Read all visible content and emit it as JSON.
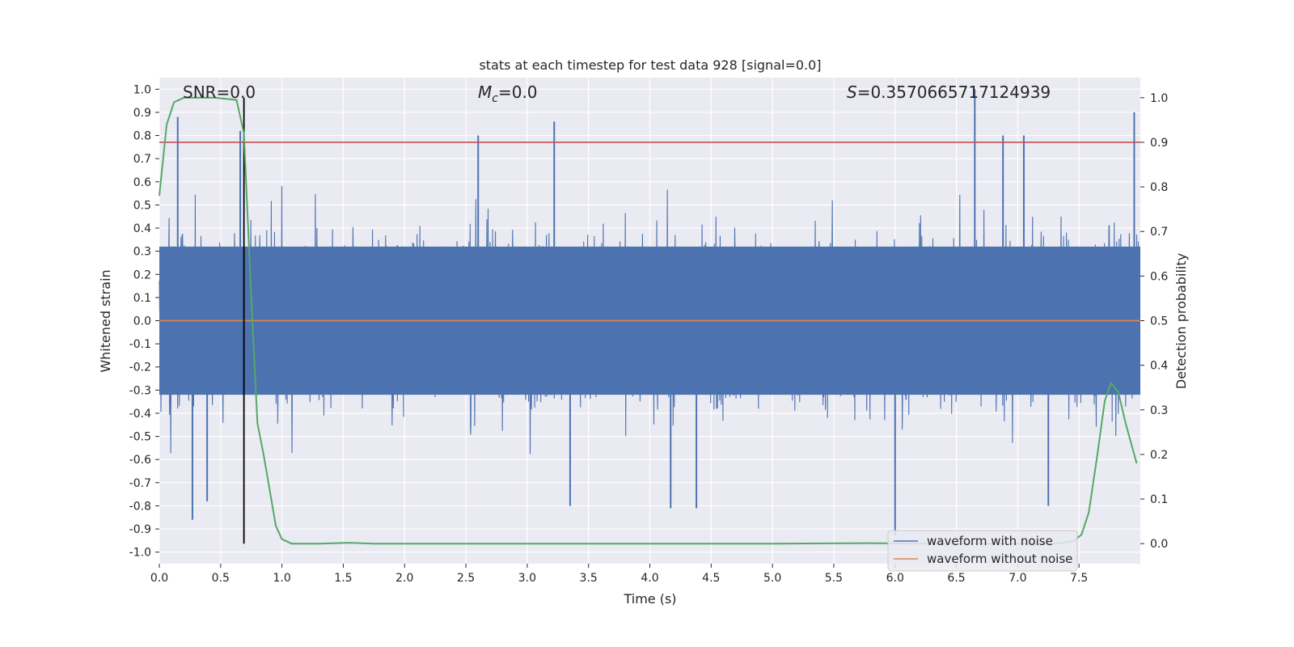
{
  "chart_data": {
    "type": "line",
    "title": "stats at each timestep for test data 928 [signal=0.0]",
    "xlabel": "Time (s)",
    "ylabel_left": "Whitened strain",
    "ylabel_right": "Detection probability",
    "xlim": [
      0.0,
      8.0
    ],
    "ylim_left": [
      -1.05,
      1.05
    ],
    "ylim_right": [
      -0.045,
      1.045
    ],
    "x_ticks": [
      "0.0",
      "0.5",
      "1.0",
      "1.5",
      "2.0",
      "2.5",
      "3.0",
      "3.5",
      "4.0",
      "4.5",
      "5.0",
      "5.5",
      "6.0",
      "6.5",
      "7.0",
      "7.5"
    ],
    "y_left_ticks": [
      "1.0",
      "0.9",
      "0.8",
      "0.7",
      "0.6",
      "0.5",
      "0.4",
      "0.3",
      "0.2",
      "0.1",
      "0.0",
      "-0.1",
      "-0.2",
      "-0.3",
      "-0.4",
      "-0.5",
      "-0.6",
      "-0.7",
      "-0.8",
      "-0.9",
      "-1.0"
    ],
    "y_right_ticks": [
      "1.0",
      "0.9",
      "0.8",
      "0.7",
      "0.6",
      "0.5",
      "0.4",
      "0.3",
      "0.2",
      "0.1",
      "0.0"
    ],
    "annotations": {
      "snr_label": "SNR=0.0",
      "mc_symbol": "M",
      "mc_sub": "c",
      "mc_value": "=0.0",
      "s_symbol": "S",
      "s_value": "=0.3570665717124939"
    },
    "threshold_right": 0.9,
    "vertical_marker_x": 0.69,
    "grid": true,
    "legend_position": "lower-right",
    "series": [
      {
        "name": "waveform with noise",
        "color": "#4c72b0",
        "description_values": "dense noise, typical range ~[-0.55, 0.55], peaks to 1.0",
        "spikes": [
          [
            0.15,
            0.88
          ],
          [
            0.27,
            -0.86
          ],
          [
            0.39,
            -0.78
          ],
          [
            0.66,
            0.82
          ],
          [
            2.6,
            0.8
          ],
          [
            3.22,
            0.86
          ],
          [
            3.35,
            -0.8
          ],
          [
            4.17,
            -0.81
          ],
          [
            4.38,
            -0.81
          ],
          [
            6.0,
            -0.93
          ],
          [
            6.65,
            1.0
          ],
          [
            6.88,
            0.8
          ],
          [
            7.05,
            0.8
          ],
          [
            7.25,
            -0.8
          ],
          [
            7.95,
            0.9
          ]
        ]
      },
      {
        "name": "waveform without noise",
        "color": "#dd8452",
        "values_constant": 0.0
      },
      {
        "name": "",
        "color": "#55a868",
        "axis": "right",
        "x": [
          0.0,
          0.06,
          0.12,
          0.2,
          0.3,
          0.45,
          0.63,
          0.69,
          0.75,
          0.8,
          0.85,
          0.9,
          0.95,
          1.0,
          1.08,
          1.3,
          1.55,
          1.75,
          2.0,
          3.0,
          4.0,
          5.0,
          5.8,
          6.2,
          6.6,
          7.0,
          7.3,
          7.45,
          7.52,
          7.58,
          7.65,
          7.71,
          7.76,
          7.82,
          7.88,
          7.94,
          7.97
        ],
        "y": [
          0.78,
          0.94,
          0.99,
          1.0,
          1.0,
          1.0,
          0.995,
          0.92,
          0.55,
          0.27,
          0.2,
          0.12,
          0.04,
          0.01,
          0.0,
          0.0,
          0.002,
          0.0,
          0.0,
          0.0,
          0.0,
          0.0,
          0.001,
          0.0,
          0.0,
          0.0,
          0.0,
          0.005,
          0.02,
          0.07,
          0.2,
          0.32,
          0.36,
          0.34,
          0.27,
          0.21,
          0.18
        ]
      }
    ],
    "threshold_color": "#c44e52"
  }
}
